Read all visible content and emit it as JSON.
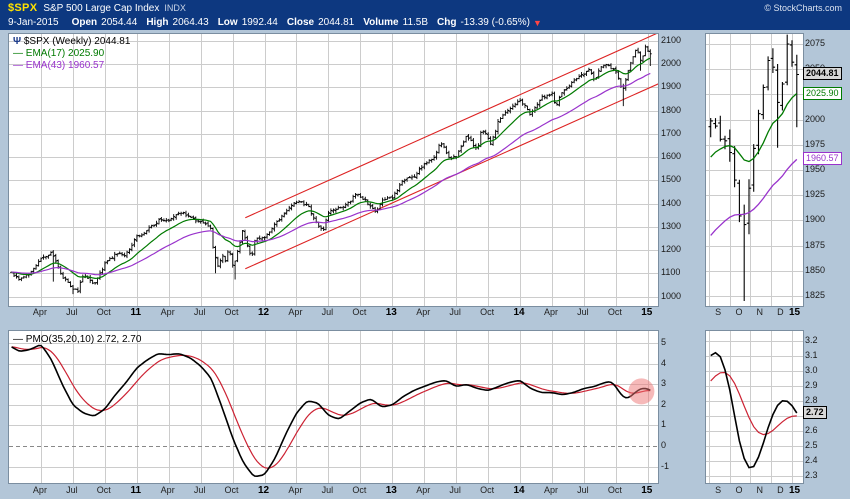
{
  "header": {
    "symbol": "$SPX",
    "name": "S&P 500 Large Cap Index",
    "exchange": "INDX",
    "copyright": "© StockCharts.com",
    "date": "9-Jan-2015",
    "quote": {
      "open_label": "Open",
      "open": "2054.44",
      "high_label": "High",
      "high": "2064.43",
      "low_label": "Low",
      "low": "1992.44",
      "close_label": "Close",
      "close": "2044.81",
      "volume_label": "Volume",
      "volume": "11.5B",
      "chg_label": "Chg",
      "chg": "-13.39 (-0.65%)",
      "chg_dir": "▼"
    }
  },
  "legend": {
    "price_items": [
      {
        "icon": "Ψ",
        "label": "$SPX (Weekly) 2044.81",
        "color": "#000000"
      },
      {
        "label": "EMA(17) 2025.90",
        "color": "#007a00"
      },
      {
        "label": "EMA(43) 1960.57",
        "color": "#9933cc"
      }
    ],
    "pmo_item": {
      "label": "PMO(35,20,10) 2.72, 2.70",
      "color": "#000000"
    }
  },
  "colors": {
    "page_bg": "#b3c6d8",
    "panel_bg": "#ffffff",
    "header_bg": "#0d3880",
    "symbol": "#ffe200",
    "grid": "#cccccc",
    "bars": "#000000",
    "ema_fast": "#007a00",
    "ema_slow": "#9933cc",
    "channel": "#dd2222",
    "pmo": "#000000",
    "pmo_signal": "#cc2233",
    "highlight": "rgba(238,115,115,0.5)"
  },
  "chart_data": {
    "type": "financial-multi-panel",
    "title": "$SPX S&P 500 Large Cap Index Weekly with EMA(17), EMA(43) and PMO(35,20,10)",
    "price": {
      "type": "ohlc",
      "x_range": [
        2010.0,
        2015.08
      ],
      "y_range": [
        960,
        2130
      ],
      "y_ticks": [
        2100,
        2000,
        1900,
        1800,
        1700,
        1600,
        1500,
        1400,
        1300,
        1200,
        1100,
        1000
      ],
      "x_ticks": [
        {
          "t": 2010.25,
          "label": "Apr"
        },
        {
          "t": 2010.5,
          "label": "Jul"
        },
        {
          "t": 2010.75,
          "label": "Oct"
        },
        {
          "t": 2011.0,
          "label": "11",
          "bold": true
        },
        {
          "t": 2011.25,
          "label": "Apr"
        },
        {
          "t": 2011.5,
          "label": "Jul"
        },
        {
          "t": 2011.75,
          "label": "Oct"
        },
        {
          "t": 2012.0,
          "label": "12",
          "bold": true
        },
        {
          "t": 2012.25,
          "label": "Apr"
        },
        {
          "t": 2012.5,
          "label": "Jul"
        },
        {
          "t": 2012.75,
          "label": "Oct"
        },
        {
          "t": 2013.0,
          "label": "13",
          "bold": true
        },
        {
          "t": 2013.25,
          "label": "Apr"
        },
        {
          "t": 2013.5,
          "label": "Jul"
        },
        {
          "t": 2013.75,
          "label": "Oct"
        },
        {
          "t": 2014.0,
          "label": "14",
          "bold": true
        },
        {
          "t": 2014.25,
          "label": "Apr"
        },
        {
          "t": 2014.5,
          "label": "Jul"
        },
        {
          "t": 2014.75,
          "label": "Oct"
        },
        {
          "t": 2015.0,
          "label": "15",
          "bold": true
        }
      ],
      "anchors": [
        [
          2010.0,
          1115
        ],
        [
          2010.083,
          1074
        ],
        [
          2010.167,
          1104
        ],
        [
          2010.25,
          1169
        ],
        [
          2010.333,
          1187
        ],
        [
          2010.36,
          1158
        ],
        [
          2010.417,
          1089
        ],
        [
          2010.5,
          1031
        ],
        [
          2010.54,
          1023
        ],
        [
          2010.583,
          1102
        ],
        [
          2010.667,
          1049
        ],
        [
          2010.75,
          1141
        ],
        [
          2010.833,
          1183
        ],
        [
          2010.917,
          1181
        ],
        [
          2011.0,
          1258
        ],
        [
          2011.083,
          1286
        ],
        [
          2011.167,
          1327
        ],
        [
          2011.25,
          1326
        ],
        [
          2011.333,
          1364
        ],
        [
          2011.417,
          1345
        ],
        [
          2011.5,
          1321
        ],
        [
          2011.583,
          1292
        ],
        [
          2011.6,
          1199
        ],
        [
          2011.64,
          1124
        ],
        [
          2011.67,
          1177
        ],
        [
          2011.7,
          1154
        ],
        [
          2011.72,
          1216
        ],
        [
          2011.75,
          1131
        ],
        [
          2011.77,
          1155
        ],
        [
          2011.81,
          1238
        ],
        [
          2011.83,
          1285
        ],
        [
          2011.9,
          1159
        ],
        [
          2011.92,
          1244
        ],
        [
          2012.0,
          1258
        ],
        [
          2012.083,
          1312
        ],
        [
          2012.167,
          1366
        ],
        [
          2012.25,
          1408
        ],
        [
          2012.333,
          1398
        ],
        [
          2012.417,
          1310
        ],
        [
          2012.458,
          1278
        ],
        [
          2012.5,
          1362
        ],
        [
          2012.583,
          1379
        ],
        [
          2012.667,
          1407
        ],
        [
          2012.708,
          1441
        ],
        [
          2012.75,
          1433
        ],
        [
          2012.792,
          1412
        ],
        [
          2012.85,
          1380
        ],
        [
          2012.875,
          1360
        ],
        [
          2012.917,
          1416
        ],
        [
          2013.0,
          1426
        ],
        [
          2013.083,
          1498
        ],
        [
          2013.167,
          1515
        ],
        [
          2013.25,
          1569
        ],
        [
          2013.333,
          1598
        ],
        [
          2013.375,
          1667
        ],
        [
          2013.458,
          1592
        ],
        [
          2013.5,
          1606
        ],
        [
          2013.583,
          1691
        ],
        [
          2013.667,
          1633
        ],
        [
          2013.7,
          1725
        ],
        [
          2013.75,
          1682
        ],
        [
          2013.77,
          1656
        ],
        [
          2013.833,
          1757
        ],
        [
          2013.917,
          1806
        ],
        [
          2014.0,
          1848
        ],
        [
          2014.083,
          1783
        ],
        [
          2014.167,
          1859
        ],
        [
          2014.25,
          1872
        ],
        [
          2014.28,
          1816
        ],
        [
          2014.333,
          1884
        ],
        [
          2014.417,
          1924
        ],
        [
          2014.5,
          1960
        ],
        [
          2014.54,
          1978
        ],
        [
          2014.583,
          1925
        ],
        [
          2014.63,
          1988
        ],
        [
          2014.667,
          2003
        ],
        [
          2014.708,
          1985
        ],
        [
          2014.75,
          1972
        ],
        [
          2014.79,
          1906
        ],
        [
          2014.805,
          1886
        ],
        [
          2014.84,
          1965
        ],
        [
          2014.875,
          2018
        ],
        [
          2014.917,
          2068
        ],
        [
          2014.95,
          2002
        ],
        [
          2014.975,
          2081
        ],
        [
          2015.0,
          2058
        ],
        [
          2015.02,
          2044.81
        ]
      ],
      "spike_lows": [
        [
          2010.35,
          1065
        ],
        [
          2010.51,
          1011
        ],
        [
          2011.61,
          1101
        ],
        [
          2011.77,
          1074
        ],
        [
          2014.805,
          1820
        ],
        [
          2014.95,
          1972
        ]
      ],
      "last_bar": {
        "open": 2054.44,
        "high": 2064.43,
        "low": 1992.44,
        "close": 2044.81
      },
      "emas": [
        {
          "name": "EMA(17)",
          "period": 17,
          "last": 2025.9,
          "color_key": "ema_fast"
        },
        {
          "name": "EMA(43)",
          "period": 43,
          "last": 1960.57,
          "color_key": "ema_slow"
        }
      ],
      "channel": {
        "lower": [
          [
            2011.85,
            1120
          ],
          [
            2015.1,
            1920
          ]
        ],
        "upper": [
          [
            2011.85,
            1340
          ],
          [
            2015.1,
            2140
          ]
        ]
      }
    },
    "pmo": {
      "type": "line",
      "x_range": [
        2010.0,
        2015.08
      ],
      "y_range": [
        -1.8,
        5.6
      ],
      "y_ticks": [
        5,
        4,
        3,
        2,
        1,
        0,
        -1
      ],
      "zero_dashed": true,
      "signal_period": 10,
      "last": 2.72,
      "signal_last": 2.7,
      "highlight": {
        "t": 2014.95,
        "v": 2.66,
        "r": 13
      },
      "anchors": [
        [
          2010.0,
          4.9
        ],
        [
          2010.083,
          4.6
        ],
        [
          2010.167,
          4.7
        ],
        [
          2010.25,
          4.95
        ],
        [
          2010.333,
          4.2
        ],
        [
          2010.417,
          3.0
        ],
        [
          2010.5,
          2.0
        ],
        [
          2010.583,
          1.6
        ],
        [
          2010.667,
          1.45
        ],
        [
          2010.75,
          1.8
        ],
        [
          2010.833,
          2.5
        ],
        [
          2010.917,
          3.1
        ],
        [
          2011.0,
          3.8
        ],
        [
          2011.083,
          4.2
        ],
        [
          2011.167,
          4.5
        ],
        [
          2011.25,
          4.45
        ],
        [
          2011.333,
          4.5
        ],
        [
          2011.417,
          4.3
        ],
        [
          2011.5,
          3.9
        ],
        [
          2011.583,
          3.3
        ],
        [
          2011.667,
          1.9
        ],
        [
          2011.75,
          0.4
        ],
        [
          2011.833,
          -0.8
        ],
        [
          2011.917,
          -1.5
        ],
        [
          2012.0,
          -1.4
        ],
        [
          2012.083,
          -0.6
        ],
        [
          2012.167,
          0.6
        ],
        [
          2012.25,
          1.6
        ],
        [
          2012.333,
          2.2
        ],
        [
          2012.417,
          2.1
        ],
        [
          2012.5,
          1.5
        ],
        [
          2012.583,
          1.3
        ],
        [
          2012.667,
          1.7
        ],
        [
          2012.75,
          2.1
        ],
        [
          2012.833,
          2.3
        ],
        [
          2012.917,
          1.9
        ],
        [
          2013.0,
          2.0
        ],
        [
          2013.083,
          2.4
        ],
        [
          2013.167,
          2.7
        ],
        [
          2013.25,
          2.9
        ],
        [
          2013.333,
          3.1
        ],
        [
          2013.417,
          3.2
        ],
        [
          2013.5,
          2.9
        ],
        [
          2013.583,
          3.0
        ],
        [
          2013.667,
          2.8
        ],
        [
          2013.75,
          2.7
        ],
        [
          2013.833,
          2.9
        ],
        [
          2013.917,
          3.1
        ],
        [
          2014.0,
          3.2
        ],
        [
          2014.083,
          2.8
        ],
        [
          2014.167,
          2.6
        ],
        [
          2014.25,
          2.6
        ],
        [
          2014.333,
          2.5
        ],
        [
          2014.417,
          2.6
        ],
        [
          2014.5,
          2.8
        ],
        [
          2014.583,
          2.9
        ],
        [
          2014.667,
          3.1
        ],
        [
          2014.708,
          3.15
        ],
        [
          2014.75,
          2.9
        ],
        [
          2014.79,
          2.5
        ],
        [
          2014.833,
          2.3
        ],
        [
          2014.875,
          2.45
        ],
        [
          2014.917,
          2.7
        ],
        [
          2014.96,
          2.82
        ],
        [
          2015.0,
          2.78
        ],
        [
          2015.02,
          2.72
        ]
      ]
    },
    "price_zoom": {
      "type": "ohlc",
      "x_range": [
        2014.655,
        2015.045
      ],
      "y_range": [
        1815,
        2085
      ],
      "y_ticks": [
        2075,
        2050,
        2025,
        2000,
        1975,
        1950,
        1925,
        1900,
        1875,
        1850,
        1825
      ],
      "grid_x": [
        2014.667,
        2014.75,
        2014.833,
        2014.917,
        2015.0
      ],
      "x_ticks": [
        {
          "t": 2014.708,
          "label": "S"
        },
        {
          "t": 2014.792,
          "label": "O"
        },
        {
          "t": 2014.875,
          "label": "N"
        },
        {
          "t": 2014.958,
          "label": "D"
        },
        {
          "t": 2015.015,
          "label": "15",
          "bold": true
        }
      ],
      "price_labels": [
        {
          "value": 2044.81,
          "text": "2044.81",
          "fg": "#000000",
          "bg": "#d8d8d8",
          "border": "#000000",
          "bold": true
        },
        {
          "value": 2025.9,
          "text": "2025.90",
          "fg": "#007a00",
          "bg": "#ffffff",
          "border": "#007a00"
        },
        {
          "value": 1960.57,
          "text": "1960.57",
          "fg": "#9933cc",
          "bg": "#ffffff",
          "border": "#9933cc"
        }
      ]
    },
    "pmo_zoom": {
      "type": "line",
      "x_range": [
        2014.655,
        2015.045
      ],
      "y_range": [
        2.25,
        3.27
      ],
      "y_ticks": [
        3.2,
        3.1,
        3.0,
        2.9,
        2.8,
        2.7,
        2.6,
        2.5,
        2.4,
        2.3
      ],
      "tick_decimals": 1,
      "grid_x": [
        2014.667,
        2014.75,
        2014.833,
        2014.917,
        2015.0
      ],
      "x_ticks": [
        {
          "t": 2014.708,
          "label": "S"
        },
        {
          "t": 2014.792,
          "label": "O"
        },
        {
          "t": 2014.875,
          "label": "N"
        },
        {
          "t": 2014.958,
          "label": "D"
        },
        {
          "t": 2015.015,
          "label": "15",
          "bold": true
        }
      ],
      "price_labels": [
        {
          "value": 2.72,
          "text": "2.72",
          "fg": "#000000",
          "bg": "#d8d8d8",
          "border": "#000000",
          "bold": true
        }
      ]
    }
  }
}
